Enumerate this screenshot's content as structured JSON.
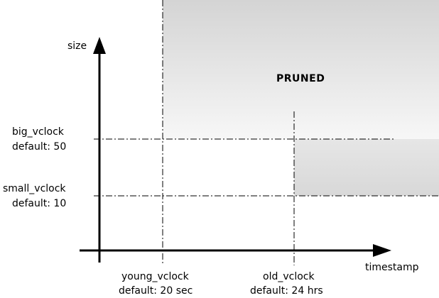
{
  "axes": {
    "y_label": "size",
    "x_label": "timestamp"
  },
  "region_label": "PRUNED",
  "thresholds": {
    "big": {
      "name": "big_vclock",
      "default": "default: 50"
    },
    "small": {
      "name": "small_vclock",
      "default": "default: 10"
    },
    "young": {
      "name": "young_vclock",
      "default": "default: 20 sec"
    },
    "old": {
      "name": "old_vclock",
      "default": "default: 24 hrs"
    }
  },
  "colors": {
    "pruned_dark": "#d4d4d4",
    "pruned_light": "#fafafa",
    "axis": "#000000"
  }
}
